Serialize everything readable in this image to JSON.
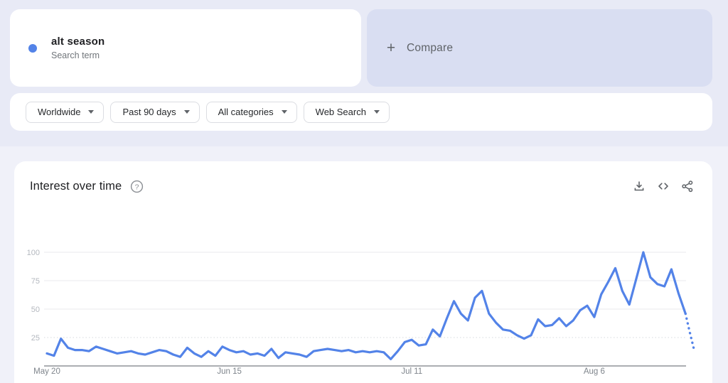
{
  "term_card": {
    "term": "alt season",
    "type_label": "Search term"
  },
  "compare_card": {
    "plus_glyph": "+",
    "label": "Compare"
  },
  "filters": [
    {
      "label": "Worldwide"
    },
    {
      "label": "Past 90 days"
    },
    {
      "label": "All categories"
    },
    {
      "label": "Web Search"
    }
  ],
  "chart_card": {
    "title": "Interest over time",
    "icons": [
      "help-icon",
      "download-icon",
      "embed-code-icon",
      "share-icon"
    ]
  },
  "chart_data": {
    "type": "line",
    "title": "Interest over time",
    "series_name": "alt season",
    "line_color": "#5383e8",
    "ylim": [
      0,
      100
    ],
    "y_ticks": [
      25,
      50,
      75,
      100
    ],
    "x_tick_labels": [
      "May 20",
      "Jun 15",
      "Jul 11",
      "Aug 6"
    ],
    "x_tick_days": [
      0,
      26,
      52,
      78
    ],
    "grid": "on",
    "values": [
      11,
      9,
      24,
      16,
      14,
      14,
      13,
      17,
      15,
      13,
      11,
      12,
      13,
      11,
      10,
      12,
      14,
      13,
      10,
      8,
      16,
      11,
      8,
      13,
      9,
      17,
      14,
      12,
      13,
      10,
      11,
      9,
      15,
      7,
      12,
      11,
      10,
      8,
      13,
      14,
      15,
      14,
      13,
      14,
      12,
      13,
      12,
      13,
      12,
      6,
      13,
      21,
      23,
      18,
      19,
      32,
      26,
      42,
      57,
      46,
      40,
      60,
      66,
      46,
      38,
      32,
      31,
      27,
      24,
      27,
      41,
      35,
      36,
      42,
      35,
      40,
      49,
      53,
      43,
      63,
      74,
      86,
      66,
      54,
      77,
      100,
      78,
      72,
      70,
      85,
      64,
      46
    ],
    "dashed_tail": [
      [
        91,
        46
      ],
      [
        91.6,
        30
      ],
      [
        92.2,
        15
      ]
    ]
  },
  "colors": {
    "accent_blue": "#5383e8",
    "top_background": "#e8eaf6",
    "main_background": "#f0f1f9",
    "compare_background": "#d9def2",
    "grid": "#e9eaee",
    "grid_minor": "#d6d9de",
    "axis": "#909499",
    "y_tick_text": "#b4b8bf",
    "x_tick_text": "#7f858c"
  }
}
